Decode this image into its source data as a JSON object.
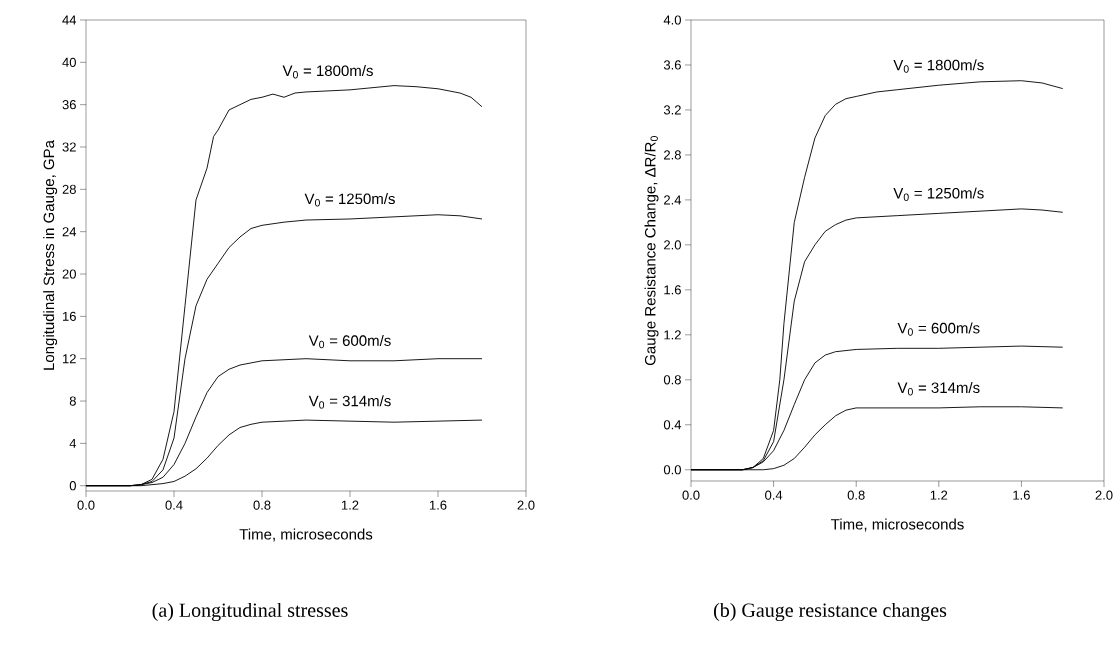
{
  "chart_data": [
    {
      "type": "line",
      "xlabel": "Time, microseconds",
      "ylabel": "Longitudinal Stress in Gauge, GPa",
      "annotations": [
        "(a) Longitudinal stresses"
      ],
      "xlim": [
        0,
        2
      ],
      "ylim": [
        -0.5,
        44
      ],
      "xticks": [
        {
          "value": 0,
          "label": "0.0"
        },
        {
          "value": 0.4,
          "label": "0.4"
        },
        {
          "value": 0.8,
          "label": "0.8"
        },
        {
          "value": 1.2,
          "label": "1.2"
        },
        {
          "value": 1.6,
          "label": "1.6"
        },
        {
          "value": 2,
          "label": "2.0"
        }
      ],
      "yticks": [
        0,
        4,
        8,
        12,
        16,
        20,
        24,
        28,
        32,
        36,
        40,
        44
      ],
      "series": [
        {
          "name": "V$_{0}$ = 1800m/s",
          "color": "#000000",
          "x": [
            0,
            0.2,
            0.25,
            0.3,
            0.35,
            0.4,
            0.45,
            0.5,
            0.55,
            0.58,
            0.6,
            0.65,
            0.7,
            0.75,
            0.8,
            0.85,
            0.9,
            0.95,
            1.0,
            1.1,
            1.2,
            1.3,
            1.4,
            1.5,
            1.6,
            1.7,
            1.75,
            1.8
          ],
          "values": [
            0,
            0,
            0.1,
            0.6,
            2.5,
            7,
            17,
            27,
            30,
            33,
            33.6,
            35.5,
            36,
            36.5,
            36.7,
            37,
            36.7,
            37.1,
            37.2,
            37.3,
            37.4,
            37.6,
            37.8,
            37.7,
            37.5,
            37.1,
            36.7,
            35.8
          ]
        },
        {
          "name": "V$_{0}$ = 1250m/s",
          "color": "#000000",
          "x": [
            0,
            0.2,
            0.25,
            0.3,
            0.35,
            0.4,
            0.45,
            0.5,
            0.55,
            0.6,
            0.65,
            0.7,
            0.75,
            0.8,
            0.9,
            1.0,
            1.2,
            1.4,
            1.6,
            1.7,
            1.8
          ],
          "values": [
            0,
            0,
            0.1,
            0.4,
            1.5,
            4.5,
            12,
            17,
            19.5,
            21,
            22.5,
            23.5,
            24.3,
            24.6,
            24.9,
            25.1,
            25.2,
            25.4,
            25.6,
            25.5,
            25.2
          ]
        },
        {
          "name": "V$_{0}$ = 600m/s",
          "color": "#000000",
          "x": [
            0,
            0.2,
            0.25,
            0.3,
            0.35,
            0.4,
            0.45,
            0.5,
            0.55,
            0.6,
            0.65,
            0.7,
            0.8,
            0.9,
            1.0,
            1.2,
            1.4,
            1.6,
            1.8
          ],
          "values": [
            0,
            0,
            0.1,
            0.3,
            0.8,
            2,
            4,
            6.5,
            8.8,
            10.3,
            11,
            11.4,
            11.8,
            11.9,
            12,
            11.8,
            11.8,
            12,
            12
          ]
        },
        {
          "name": "V$_{0}$ = 314m/s",
          "color": "#000000",
          "x": [
            0,
            0.25,
            0.3,
            0.35,
            0.4,
            0.45,
            0.5,
            0.55,
            0.6,
            0.65,
            0.7,
            0.75,
            0.8,
            0.9,
            1.0,
            1.2,
            1.4,
            1.6,
            1.8
          ],
          "values": [
            0,
            0,
            0.1,
            0.2,
            0.4,
            0.9,
            1.6,
            2.6,
            3.8,
            4.8,
            5.5,
            5.8,
            6,
            6.1,
            6.2,
            6.1,
            6.0,
            6.1,
            6.2
          ]
        }
      ]
    },
    {
      "type": "line",
      "xlabel": "Time, microseconds",
      "ylabel": "Gauge Resistance Change, ΔR/R$_{0}$",
      "annotations": [
        "(b) Gauge resistance changes"
      ],
      "xlim": [
        0,
        2
      ],
      "ylim": [
        -0.1,
        4.0
      ],
      "xticks": [
        {
          "value": 0,
          "label": "0.0"
        },
        {
          "value": 0.4,
          "label": "0.4"
        },
        {
          "value": 0.8,
          "label": "0.8"
        },
        {
          "value": 1.2,
          "label": "1.2"
        },
        {
          "value": 1.6,
          "label": "1.6"
        },
        {
          "value": 2,
          "label": "2.0"
        }
      ],
      "yticks": [
        {
          "value": 0,
          "label": "0.0"
        },
        {
          "value": 0.4,
          "label": "0.4"
        },
        {
          "value": 0.8,
          "label": "0.8"
        },
        {
          "value": 1.2,
          "label": "1.2"
        },
        {
          "value": 1.6,
          "label": "1.6"
        },
        {
          "value": 2,
          "label": "2.0"
        },
        {
          "value": 2.4,
          "label": "2.4"
        },
        {
          "value": 2.8,
          "label": "2.8"
        },
        {
          "value": 3.2,
          "label": "3.2"
        },
        {
          "value": 3.6,
          "label": "3.6"
        },
        {
          "value": 4,
          "label": "4.0"
        }
      ],
      "series": [
        {
          "name": "V$_{0}$ = 1800m/s",
          "color": "#000000",
          "x": [
            0,
            0.25,
            0.3,
            0.35,
            0.4,
            0.43,
            0.45,
            0.5,
            0.55,
            0.6,
            0.65,
            0.7,
            0.75,
            0.8,
            0.9,
            1.0,
            1.2,
            1.4,
            1.6,
            1.7,
            1.8
          ],
          "values": [
            0,
            0,
            0.02,
            0.1,
            0.35,
            0.8,
            1.3,
            2.2,
            2.6,
            2.95,
            3.15,
            3.25,
            3.3,
            3.32,
            3.36,
            3.38,
            3.42,
            3.45,
            3.46,
            3.44,
            3.39
          ]
        },
        {
          "name": "V$_{0}$ = 1250m/s",
          "color": "#000000",
          "x": [
            0,
            0.25,
            0.3,
            0.35,
            0.4,
            0.45,
            0.5,
            0.55,
            0.6,
            0.65,
            0.7,
            0.75,
            0.8,
            1.0,
            1.2,
            1.4,
            1.6,
            1.7,
            1.8
          ],
          "values": [
            0,
            0,
            0.02,
            0.08,
            0.25,
            0.8,
            1.5,
            1.85,
            2.0,
            2.12,
            2.18,
            2.22,
            2.24,
            2.26,
            2.28,
            2.3,
            2.32,
            2.31,
            2.29
          ]
        },
        {
          "name": "V$_{0}$ = 600m/s",
          "color": "#000000",
          "x": [
            0,
            0.25,
            0.3,
            0.35,
            0.4,
            0.45,
            0.5,
            0.55,
            0.6,
            0.65,
            0.7,
            0.8,
            1.0,
            1.2,
            1.4,
            1.6,
            1.8
          ],
          "values": [
            0,
            0,
            0.02,
            0.07,
            0.17,
            0.35,
            0.58,
            0.8,
            0.95,
            1.02,
            1.05,
            1.07,
            1.08,
            1.08,
            1.09,
            1.1,
            1.09
          ]
        },
        {
          "name": "V$_{0}$ = 314m/s",
          "color": "#000000",
          "x": [
            0,
            0.35,
            0.4,
            0.45,
            0.5,
            0.55,
            0.6,
            0.65,
            0.7,
            0.75,
            0.8,
            1.0,
            1.2,
            1.4,
            1.6,
            1.8
          ],
          "values": [
            0,
            0,
            0.01,
            0.04,
            0.1,
            0.2,
            0.31,
            0.4,
            0.48,
            0.53,
            0.55,
            0.55,
            0.55,
            0.56,
            0.56,
            0.55
          ]
        }
      ]
    }
  ]
}
